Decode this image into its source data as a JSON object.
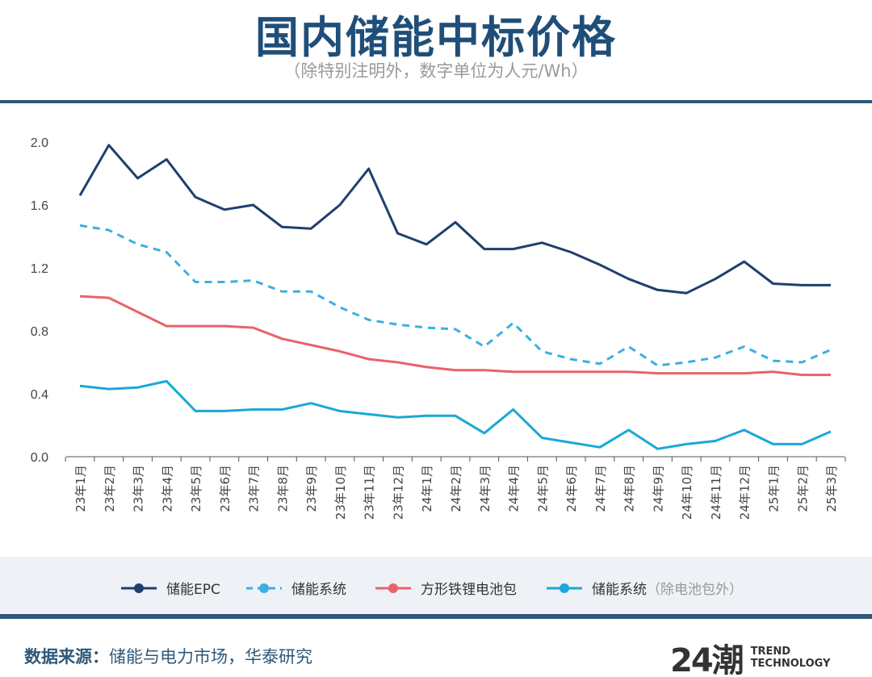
{
  "header": {
    "title": "国内储能中标价格",
    "subtitle": "（除特别注明外，数字单位为人元/Wh）"
  },
  "chart_data": {
    "type": "line",
    "title": "国内储能中标价格",
    "subtitle": "（除特别注明外，数字单位为人元/Wh）",
    "ylim": [
      0,
      2.0
    ],
    "yticks": [
      "0.0",
      "0.4",
      "0.8",
      "1.2",
      "1.6",
      "2.0"
    ],
    "grid": false,
    "legend_position": "bottom",
    "categories": [
      "23年1月",
      "23年2月",
      "23年3月",
      "23年4月",
      "23年5月",
      "23年6月",
      "23年7月",
      "23年8月",
      "23年9月",
      "23年10月",
      "23年11月",
      "23年12月",
      "24年1月",
      "24年2月",
      "24年3月",
      "24年4月",
      "24年5月",
      "24年6月",
      "24年7月",
      "24年8月",
      "24年9月",
      "24年10月",
      "24年11月",
      "24年12月",
      "25年1月",
      "25年2月",
      "25年3月"
    ],
    "series": [
      {
        "name": "储能EPC",
        "color": "#1f3f6e",
        "dash": false,
        "values": [
          1.66,
          1.98,
          1.77,
          1.89,
          1.65,
          1.57,
          1.6,
          1.46,
          1.45,
          1.6,
          1.83,
          1.42,
          1.35,
          1.49,
          1.32,
          1.32,
          1.36,
          1.3,
          1.22,
          1.13,
          1.06,
          1.04,
          1.13,
          1.24,
          1.1,
          1.09,
          1.09
        ]
      },
      {
        "name": "储能系统",
        "color": "#3bb0e0",
        "dash": true,
        "values": [
          1.47,
          1.44,
          1.35,
          1.3,
          1.11,
          1.11,
          1.12,
          1.05,
          1.05,
          0.95,
          0.87,
          0.84,
          0.82,
          0.81,
          0.7,
          0.85,
          0.67,
          0.62,
          0.59,
          0.7,
          0.58,
          0.6,
          0.63,
          0.7,
          0.61,
          0.6,
          0.68
        ]
      },
      {
        "name": "方形铁锂电池包",
        "color": "#e8636a",
        "dash": false,
        "values": [
          1.02,
          1.01,
          0.92,
          0.83,
          0.83,
          0.83,
          0.82,
          0.75,
          0.71,
          0.67,
          0.62,
          0.6,
          0.57,
          0.55,
          0.55,
          0.54,
          0.54,
          0.54,
          0.54,
          0.54,
          0.53,
          0.53,
          0.53,
          0.53,
          0.54,
          0.52,
          0.52
        ]
      },
      {
        "name": "储能系统",
        "note": "（除电池包外）",
        "color": "#1aa8d8",
        "dash": false,
        "values": [
          0.45,
          0.43,
          0.44,
          0.48,
          0.29,
          0.29,
          0.3,
          0.3,
          0.34,
          0.29,
          0.27,
          0.25,
          0.26,
          0.26,
          0.15,
          0.3,
          0.12,
          0.09,
          0.06,
          0.17,
          0.05,
          0.08,
          0.1,
          0.17,
          0.08,
          0.08,
          0.16
        ]
      }
    ]
  },
  "footer": {
    "source_label": "数据来源：",
    "source_text": "储能与电力市场，华泰研究",
    "logo_text": "24潮",
    "logo_sub1": "TREND",
    "logo_sub2": "TECHNOLOGY"
  }
}
